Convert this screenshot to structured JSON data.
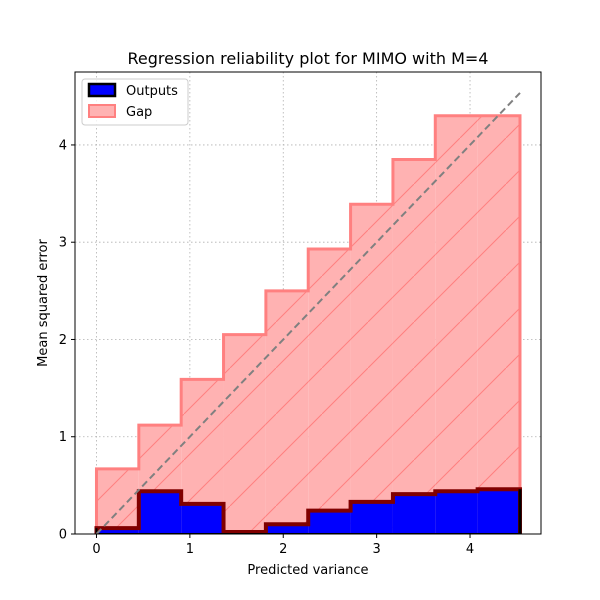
{
  "chart_data": {
    "type": "bar",
    "title": "Regression reliability plot for MIMO with M=4",
    "xlabel": "Predicted variance",
    "ylabel": "Mean squared error",
    "xlim": [
      -0.23,
      4.76
    ],
    "ylim": [
      0,
      4.75
    ],
    "xticks": [
      0,
      1,
      2,
      3,
      4
    ],
    "yticks": [
      0,
      1,
      2,
      3,
      4
    ],
    "grid": true,
    "legend_position": "top-left",
    "bin_edges": [
      0,
      0.4535,
      0.907,
      1.3605,
      1.814,
      2.2675,
      2.721,
      3.1745,
      3.628,
      4.0815,
      4.535
    ],
    "ideal_line": {
      "x": [
        0,
        4.535
      ],
      "y": [
        0,
        4.535
      ]
    },
    "series": [
      {
        "name": "Outputs",
        "values": [
          0.06,
          0.44,
          0.31,
          0.02,
          0.1,
          0.24,
          0.33,
          0.41,
          0.44,
          0.46
        ],
        "color": "#0000ff",
        "edge_color": "#800000"
      },
      {
        "name": "Gap",
        "values": [
          0.67,
          1.12,
          1.59,
          2.05,
          2.5,
          2.93,
          3.39,
          3.85,
          4.3,
          4.3
        ],
        "color": "#ffb2b2",
        "edge_color": "#ff8080"
      }
    ]
  }
}
